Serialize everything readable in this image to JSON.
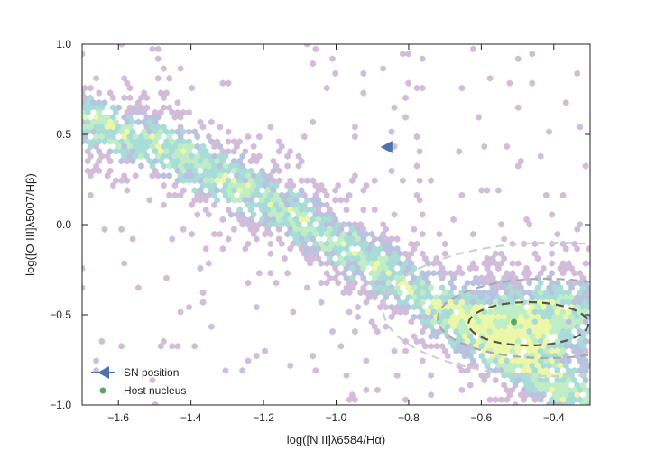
{
  "chart_data": {
    "type": "scatter",
    "subtype": "hexbin-density",
    "title": "",
    "xlabel": "log([N II]λ6584/Hα)",
    "ylabel": "log([O III]λ5007/Hβ)",
    "xlim": [
      -1.7,
      -0.3
    ],
    "ylim": [
      -1.0,
      1.0
    ],
    "xticks": [
      -1.6,
      -1.4,
      -1.2,
      -1.0,
      -0.8,
      -0.6,
      -0.4
    ],
    "xtick_labels": [
      "−1.6",
      "−1.4",
      "−1.2",
      "−1.0",
      "−0.8",
      "−0.6",
      "−0.4"
    ],
    "yticks": [
      -1.0,
      -0.5,
      0.0,
      0.5,
      1.0
    ],
    "ytick_labels": [
      "−1.0",
      "−0.5",
      "0.0",
      "0.5",
      "1.0"
    ],
    "grid": false,
    "legend_position": "lower-left",
    "density_colors": [
      "#d2bcd9",
      "#b9c3df",
      "#a8dcd9",
      "#bfeec6",
      "#ecf7a8"
    ],
    "series": [
      {
        "name": "SN position",
        "marker": "triangle-left",
        "color": "#4c72b0",
        "x": [
          -0.86
        ],
        "y": [
          0.43
        ]
      },
      {
        "name": "Host nucleus",
        "marker": "circle",
        "color": "#55a868",
        "x": [
          -0.51
        ],
        "y": [
          -0.54
        ]
      }
    ],
    "density_contours": [
      {
        "center": [
          -0.47,
          -0.55
        ],
        "half_width": [
          0.165,
          0.12
        ],
        "color": "#555555"
      },
      {
        "center": [
          -0.42,
          -0.52
        ],
        "half_width": [
          0.3,
          0.22
        ],
        "color": "#aaaaaa"
      },
      {
        "center": [
          -0.4,
          -0.47
        ],
        "half_width": [
          0.47,
          0.37
        ],
        "color": "#cfcfcf"
      }
    ]
  }
}
